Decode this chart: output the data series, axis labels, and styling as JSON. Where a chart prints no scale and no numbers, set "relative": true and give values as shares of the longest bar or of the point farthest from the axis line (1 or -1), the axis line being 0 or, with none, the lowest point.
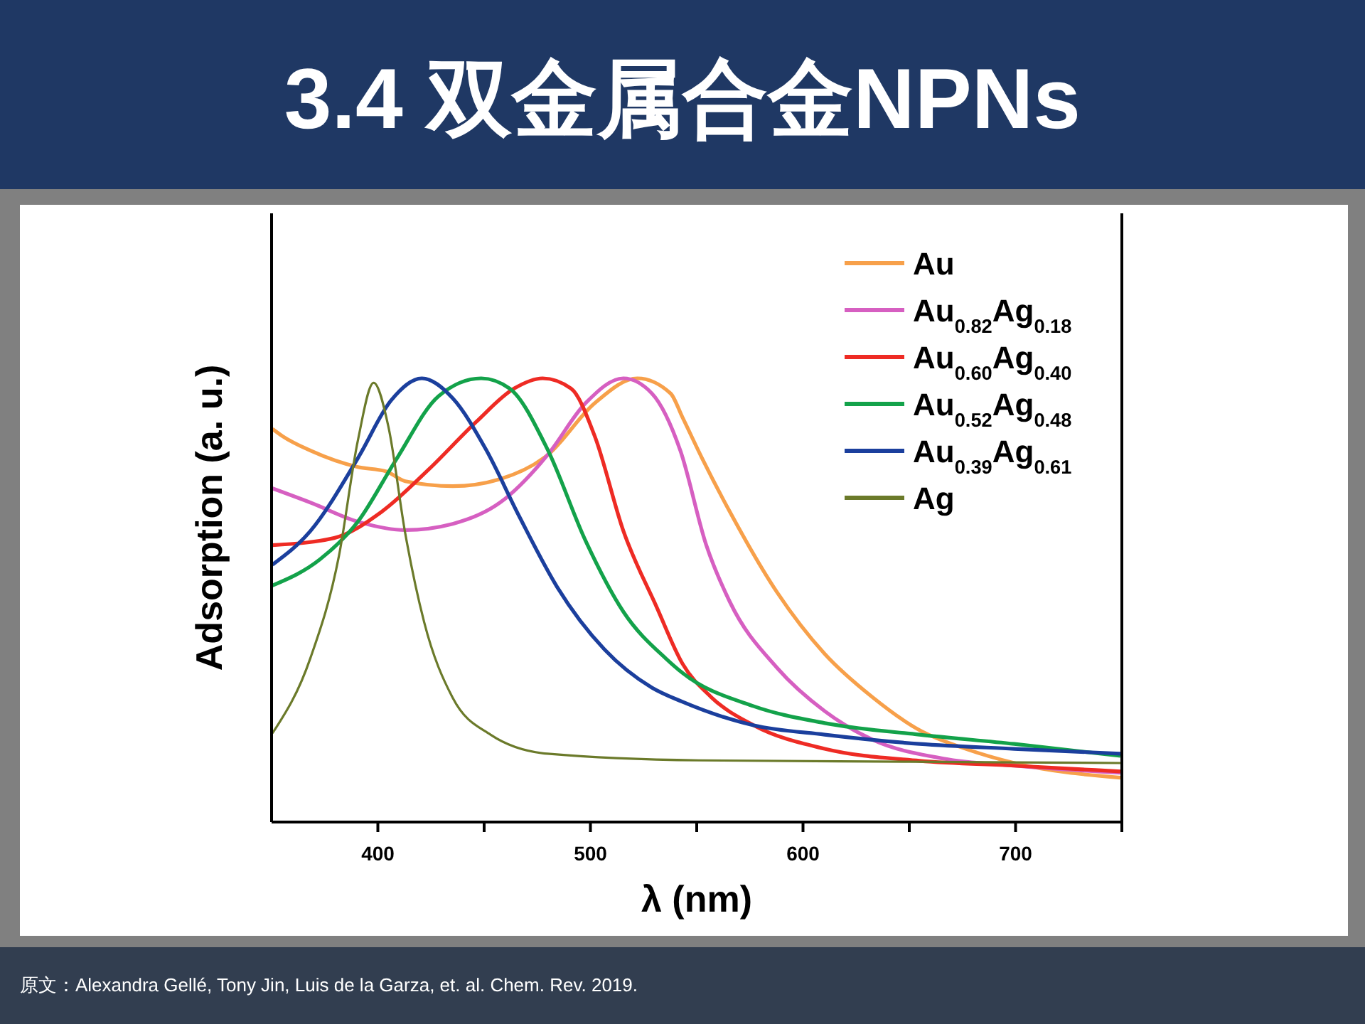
{
  "chart_data": {
    "type": "line",
    "title": "3.4 双金属合金NPNs",
    "xlabel": "λ (nm)",
    "ylabel": "Adsorption (a. u.)",
    "relative": true,
    "xlim": [
      350,
      750
    ],
    "xticks": [
      {
        "value": 400,
        "label": "400"
      },
      {
        "value": 450,
        "label": null
      },
      {
        "value": 500,
        "label": "500"
      },
      {
        "value": 550,
        "label": null
      },
      {
        "value": 600,
        "label": "600"
      },
      {
        "value": 650,
        "label": null
      },
      {
        "value": 700,
        "label": "700"
      },
      {
        "value": 750,
        "label": null
      }
    ],
    "legend": "top right",
    "annotations": [
      "原文：Alexandra Gellé, Tony Jin, Luis de la Garza, et. al.  Chem. Rev. 2019."
    ],
    "series": [
      {
        "name": "Au",
        "color": "#f7a04a",
        "x": [
          350.4,
          355,
          368.3,
          390.6,
          404,
          412.9,
          435.2,
          457.5,
          479.8,
          502,
          522.1,
          537.7,
          543.3,
          552.3,
          565.6,
          587.9,
          610.2,
          632.5,
          654.8,
          677.1,
          699.4,
          749.3
        ],
        "values": [
          0.886,
          0.87,
          0.837,
          0.8,
          0.79,
          0.768,
          0.757,
          0.773,
          0.827,
          0.944,
          1.0,
          0.966,
          0.912,
          0.822,
          0.699,
          0.517,
          0.379,
          0.282,
          0.207,
          0.164,
          0.133,
          0.1
        ]
      },
      {
        "name": "Au$_{0.82}$Ag$_{0.18}$",
        "color": "#d65fc1",
        "x": [
          350.4,
          368.3,
          390.6,
          412.9,
          435.2,
          457.5,
          479.8,
          497.7,
          515.5,
          528.9,
          542.3,
          554.5,
          565.6,
          587.9,
          610.2,
          632.5,
          666,
          699.4,
          749.3
        ],
        "values": [
          0.752,
          0.72,
          0.677,
          0.658,
          0.672,
          0.72,
          0.827,
          0.944,
          1.0,
          0.966,
          0.837,
          0.624,
          0.496,
          0.347,
          0.25,
          0.186,
          0.143,
          0.127,
          0.111
        ]
      },
      {
        "name": "Au$_{0.60}$Ag$_{0.40}$",
        "color": "#ee2b24",
        "x": [
          350.4,
          379.4,
          401.7,
          424,
          446.3,
          464.1,
          477.5,
          490.9,
          502,
          515.5,
          531.1,
          543.3,
          556.7,
          576.8,
          610.2,
          654.8,
          699.4,
          749.3
        ],
        "values": [
          0.624,
          0.64,
          0.699,
          0.795,
          0.902,
          0.977,
          1.0,
          0.977,
          0.87,
          0.656,
          0.485,
          0.357,
          0.282,
          0.218,
          0.165,
          0.138,
          0.127,
          0.114
        ]
      },
      {
        "name": "Au$_{0.52}$Ag$_{0.48}$",
        "color": "#13a24a",
        "x": [
          350.4,
          372.8,
          390.6,
          408.5,
          428.6,
          448.6,
          462,
          479.8,
          497.7,
          515.5,
          535.6,
          543.3,
          576.8,
          610.2,
          654.8,
          699.4,
          749.3
        ],
        "values": [
          0.533,
          0.592,
          0.677,
          0.816,
          0.96,
          1.0,
          0.977,
          0.84,
          0.634,
          0.474,
          0.368,
          0.336,
          0.261,
          0.223,
          0.197,
          0.176,
          0.149
        ]
      },
      {
        "name": "Au$_{0.39}$Ag$_{0.61}$",
        "color": "#1b3f9d",
        "x": [
          350.4,
          368.3,
          390.6,
          406.2,
          420.7,
          435.2,
          450.8,
          466.4,
          484.3,
          506.6,
          528.9,
          543.3,
          576.8,
          610.2,
          654.8,
          699.4,
          749.3
        ],
        "values": [
          0.58,
          0.656,
          0.82,
          0.95,
          1.0,
          0.955,
          0.84,
          0.69,
          0.53,
          0.389,
          0.303,
          0.271,
          0.218,
          0.197,
          0.176,
          0.165,
          0.154
        ]
      },
      {
        "name": "Ag",
        "color": "#6b7a2a",
        "x": [
          350.4,
          368.3,
          381.7,
          390.6,
          398,
          405,
          412.9,
          421.8,
          435.2,
          453,
          479.8,
          551,
          650,
          749.3
        ],
        "values": [
          0.2,
          0.37,
          0.6,
          0.86,
          0.99,
          0.89,
          0.65,
          0.45,
          0.28,
          0.197,
          0.154,
          0.139,
          0.136,
          0.133
        ]
      }
    ]
  }
}
